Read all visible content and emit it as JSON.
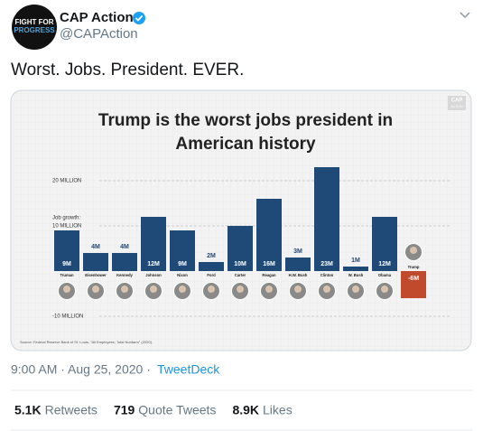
{
  "tweet": {
    "avatar_text": [
      "FIGHT FOR",
      "PROGRESS"
    ],
    "name": "CAP Action",
    "handle": "@CAPAction",
    "text": "Worst. Jobs. President. EVER.",
    "time": "9:00 AM · Aug 25, 2020 ·",
    "source": "TweetDeck",
    "stats": [
      {
        "count": "5.1K",
        "label": "Retweets"
      },
      {
        "count": "719",
        "label": "Quote Tweets"
      },
      {
        "count": "8.9K",
        "label": "Likes"
      }
    ]
  },
  "chart_data": {
    "type": "bar",
    "title": [
      "Trump is the worst jobs president in",
      "American history"
    ],
    "logo": [
      "CAP",
      "ACTION"
    ],
    "y_annotation": "Job growth:",
    "categories": [
      "Truman",
      "Eisenhower",
      "Kennedy",
      "Johnson",
      "Nixon",
      "Ford",
      "Carter",
      "Reagan",
      "H.W. Bush",
      "Clinton",
      "W. Bush",
      "Obama",
      "Trump"
    ],
    "values": [
      9,
      4,
      4,
      12,
      9,
      2,
      10,
      16,
      3,
      23,
      1,
      12,
      -6
    ],
    "value_labels": [
      "9M",
      "4M",
      "4M",
      "12M",
      "9M",
      "2M",
      "10M",
      "16M",
      "3M",
      "23M",
      "1M",
      "12M",
      "-6M"
    ],
    "colors": [
      "#1f4a78",
      "#1f4a78",
      "#1f4a78",
      "#1f4a78",
      "#1f4a78",
      "#1f4a78",
      "#1f4a78",
      "#1f4a78",
      "#1f4a78",
      "#1f4a78",
      "#1f4a78",
      "#1f4a78",
      "#c24a2c"
    ],
    "ylim": [
      -14,
      26
    ],
    "yticks": [
      {
        "value": 20,
        "label": "20 MILLION"
      },
      {
        "value": 10,
        "label": "10 MILLION"
      },
      {
        "value": -10,
        "label": "-10 MILLION"
      }
    ],
    "grid": true,
    "source": "Source: Federal Reserve Bank of St. Louis, \"All Employees, Total Nonfarm\" (2020)."
  }
}
